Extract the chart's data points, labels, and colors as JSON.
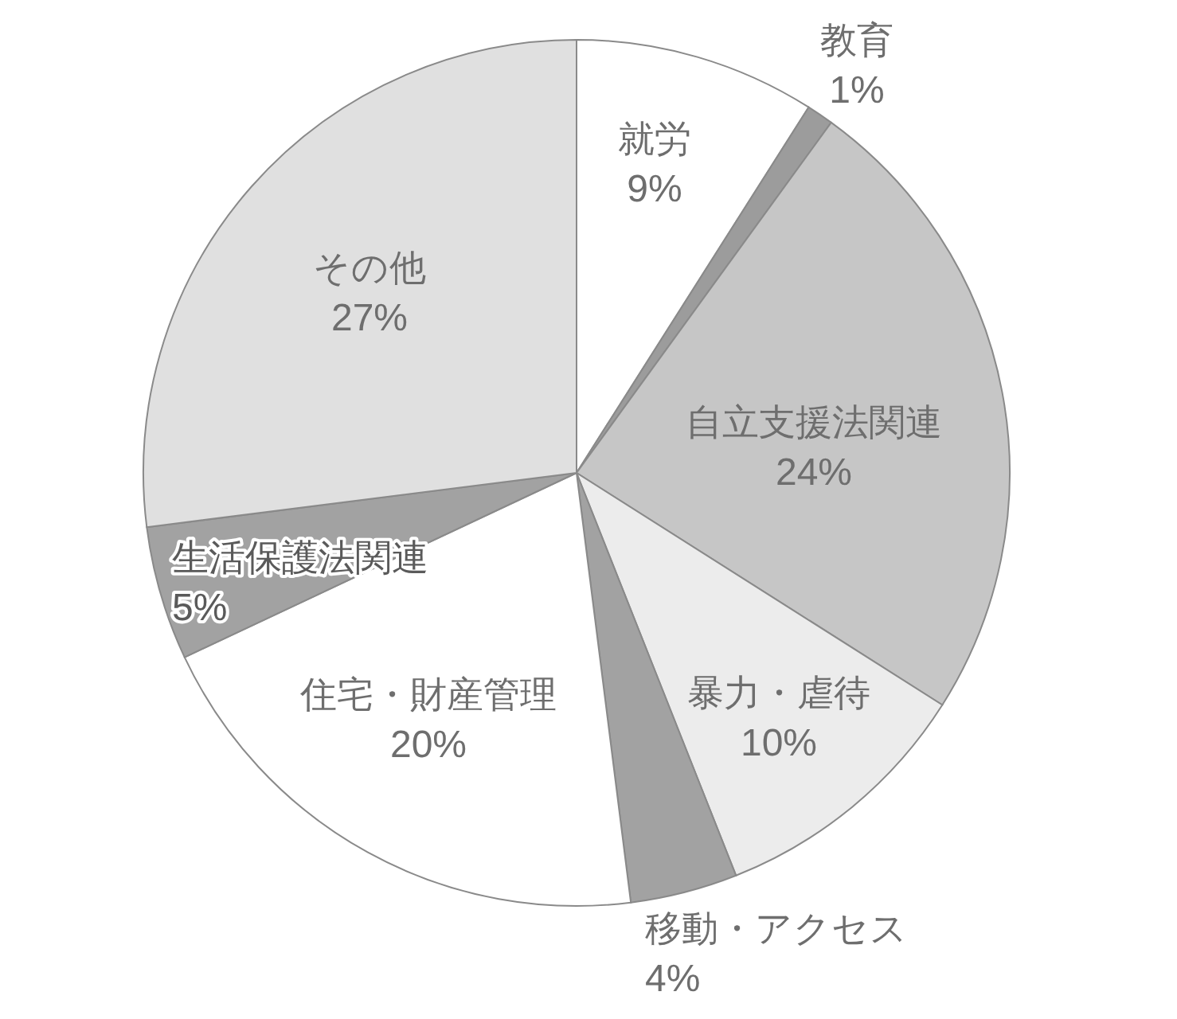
{
  "chart_data": {
    "type": "pie",
    "categories": [
      "就労",
      "教育",
      "自立支援法関連",
      "暴力・虐待",
      "移動・アクセス",
      "住宅・財産管理",
      "生活保護法関連",
      "その他"
    ],
    "values": [
      9,
      1,
      24,
      10,
      4,
      20,
      5,
      27
    ],
    "value_labels": [
      "9%",
      "1%",
      "24%",
      "10%",
      "4%",
      "20%",
      "5%",
      "27%"
    ],
    "colors": [
      "#ffffff",
      "#9c9c9c",
      "#c6c6c6",
      "#ececec",
      "#a2a2a2",
      "#ffffff",
      "#a2a2a2",
      "#e0e0e0"
    ]
  }
}
